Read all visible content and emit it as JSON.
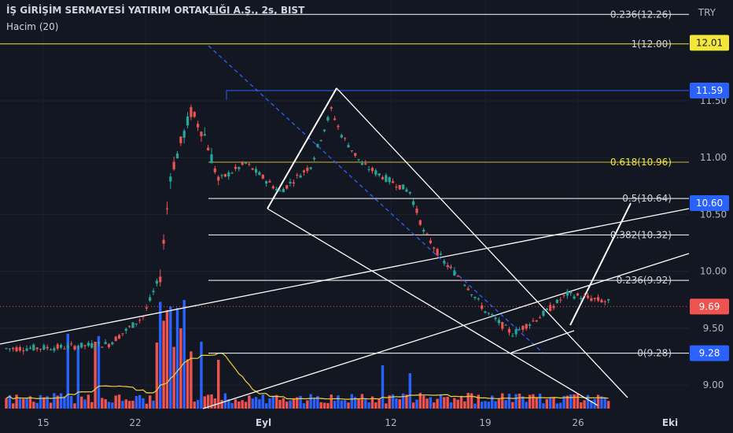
{
  "header": {
    "title": "İŞ GİRİŞİM SERMAYESİ YATIRIM ORTAKLIĞI A.Ş., 2s, BIST",
    "volume_label": "Hacim (20)",
    "currency": "TRY"
  },
  "colors": {
    "background": "#131722",
    "bull": "#26a69a",
    "bear": "#ef5350",
    "vol_bull": "#2962ff",
    "vol_bear": "#ef5350",
    "fib_line": "#ffffff",
    "fib_top": "#f3e63a",
    "fib_618": "#c9b73a",
    "blue_level": "#2962ff",
    "trend_line": "#ffffff",
    "vol_ma": "#f3d23a"
  },
  "chart_data": {
    "type": "candlestick",
    "timeframe": "2s",
    "y_axis": {
      "min": 8.75,
      "max": 12.4,
      "ticks": [
        "9.00",
        "9.50",
        "10.00",
        "10.50",
        "11.00",
        "11.50"
      ]
    },
    "x_axis": {
      "ticks": [
        "15",
        "22",
        "Eyl",
        "12",
        "19",
        "26",
        "Eki"
      ]
    },
    "price_labels": [
      {
        "value": "12.01",
        "kind": "yellow"
      },
      {
        "value": "11.59",
        "kind": "blue"
      },
      {
        "value": "10.60",
        "kind": "blue"
      },
      {
        "value": "9.69",
        "kind": "red"
      },
      {
        "value": "9.28",
        "kind": "blue"
      }
    ],
    "fib_levels": [
      {
        "label": "0.236(12.26)",
        "value": 12.26
      },
      {
        "label": "1(12.00)",
        "value": 12.0
      },
      {
        "label": "0.618(10.96)",
        "value": 10.96
      },
      {
        "label": "0.5(10.64)",
        "value": 10.64
      },
      {
        "label": "0.382(10.32)",
        "value": 10.32
      },
      {
        "label": "0.236(9.92)",
        "value": 9.92
      },
      {
        "label": "0(9.28)",
        "value": 9.28
      }
    ],
    "current_price": 9.69,
    "blue_level": 11.59
  }
}
